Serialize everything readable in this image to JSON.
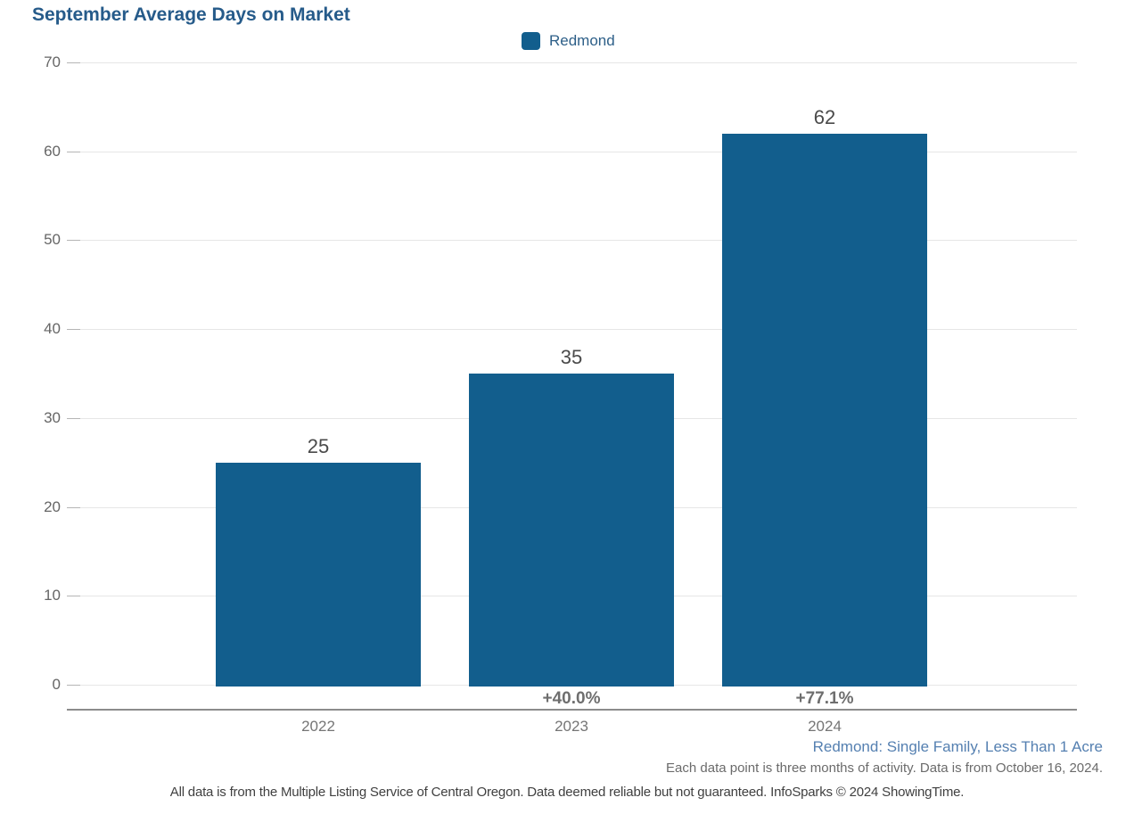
{
  "header": {
    "title": "September Average Days on Market"
  },
  "legend": {
    "items": [
      {
        "label": "Redmond",
        "color": "#125e8d"
      }
    ]
  },
  "chart_data": {
    "type": "bar",
    "title": "September Average Days on Market",
    "categories": [
      "2022",
      "2023",
      "2024"
    ],
    "series": [
      {
        "name": "Redmond",
        "values": [
          25,
          35,
          62
        ],
        "color": "#125e8d"
      }
    ],
    "data_labels": [
      "25",
      "35",
      "62"
    ],
    "percent_change_labels": [
      "",
      "+40.0%",
      "+77.1%"
    ],
    "xlabel": "",
    "ylabel": "",
    "ylim": [
      0,
      70
    ],
    "yticks": [
      0,
      10,
      20,
      30,
      40,
      50,
      60,
      70
    ],
    "grid": true,
    "legend_position": "top-center"
  },
  "footnotes": {
    "series_description": "Redmond: Single Family, Less Than 1 Acre",
    "data_note": "Each data point is three months of activity. Data is from October 16, 2024.",
    "disclaimer": "All data is from the Multiple Listing Service of Central Oregon. Data deemed reliable but not guaranteed. InfoSparks © 2024 ShowingTime."
  },
  "colors": {
    "title": "#265b8a",
    "bar": "#125e8d",
    "legend_text": "#2d5f88",
    "grid_line": "#e6e6e6",
    "tick": "#b5b5b5",
    "axis_line": "#8c8c8c",
    "ytick_label": "#666666",
    "xtick_label": "#757575",
    "value_label": "#4a4a4a",
    "percent_label": "#6e6e6e",
    "series_note": "#5580b1",
    "data_note": "#6b6b6b",
    "disclaimer_text": "#404040"
  }
}
